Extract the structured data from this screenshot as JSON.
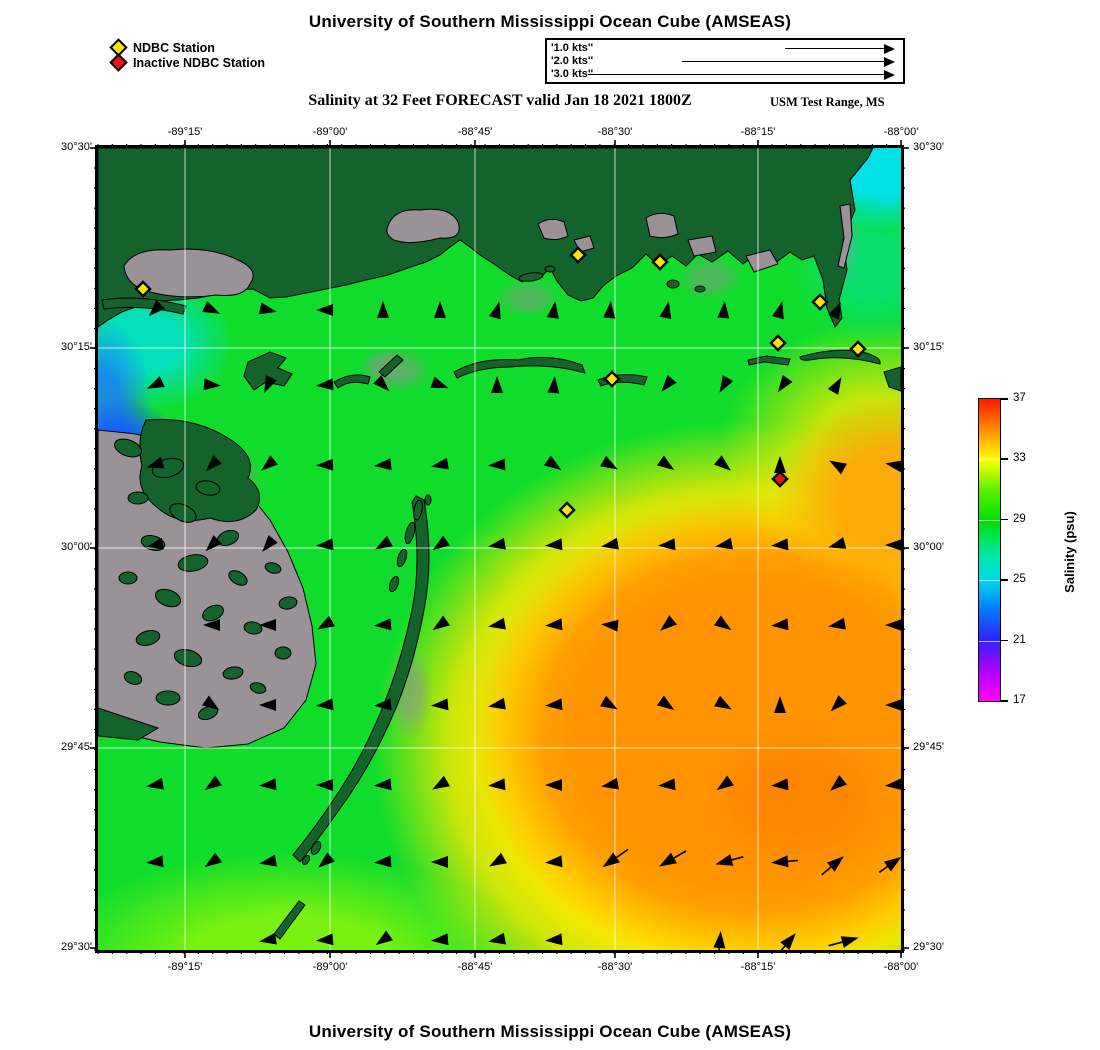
{
  "title_top": "University of Southern Mississippi Ocean Cube (AMSEAS)",
  "title_bottom": "University of Southern Mississippi Ocean Cube (AMSEAS)",
  "subtitle": "Salinity at 32 Feet FORECAST valid Jan 18 2021 1800Z",
  "region_label": "USM Test Range, MS",
  "legend": {
    "active_label": "NDBC Station",
    "inactive_label": "Inactive NDBC Station"
  },
  "scale_box": {
    "rows": [
      {
        "label": "'1.0 kts''",
        "length": 100
      },
      {
        "label": "'2.0 kts''",
        "length": 203
      },
      {
        "label": "'3.0 kts''",
        "length": 297
      }
    ]
  },
  "axes": {
    "x_ticks": [
      {
        "label": "-89°15'",
        "px": 87
      },
      {
        "label": "-89°00'",
        "px": 232
      },
      {
        "label": "-88°45'",
        "px": 377
      },
      {
        "label": "-88°30'",
        "px": 517
      },
      {
        "label": "-88°15'",
        "px": 660
      },
      {
        "label": "-88°00'",
        "px": 803
      }
    ],
    "y_ticks": [
      {
        "label": "30°30'",
        "px": 0
      },
      {
        "label": "30°15'",
        "px": 200
      },
      {
        "label": "30°00'",
        "px": 400
      },
      {
        "label": "29°45'",
        "px": 600
      },
      {
        "label": "29°30'",
        "px": 800
      }
    ]
  },
  "colorbar": {
    "title": "Salinity (psu)",
    "tick_values": [
      37,
      33,
      29,
      25,
      21,
      17
    ],
    "min": 17,
    "max": 37,
    "stops": [
      {
        "v": 17,
        "c": "#FF00FF"
      },
      {
        "v": 19,
        "c": "#B000FF"
      },
      {
        "v": 21,
        "c": "#3020FF"
      },
      {
        "v": 23,
        "c": "#0778FF"
      },
      {
        "v": 25,
        "c": "#00D8E8"
      },
      {
        "v": 26.5,
        "c": "#00E8B0"
      },
      {
        "v": 29,
        "c": "#00E000"
      },
      {
        "v": 31,
        "c": "#60F000"
      },
      {
        "v": 33,
        "c": "#FFFF00"
      },
      {
        "v": 34.5,
        "c": "#FFA800"
      },
      {
        "v": 36,
        "c": "#FF5000"
      },
      {
        "v": 37,
        "c": "#FF1800"
      }
    ]
  },
  "colors": {
    "land": "#14622C",
    "marsh_gray": "#9B9298",
    "station_active": "#FFE400",
    "station_inactive": "#EE1111",
    "arrow": "#000000",
    "gridline": "rgba(255,255,255,0.75)",
    "frame": "#000000"
  },
  "chart_data": {
    "type": "heatmap",
    "title": "Salinity at 32 Feet FORECAST valid Jan 18 2021 1800Z",
    "variable": "Salinity (psu)",
    "value_range": [
      17,
      37
    ],
    "colorbar_ticks": [
      17,
      21,
      25,
      29,
      33,
      37
    ],
    "lon_range": [
      "-89°24'",
      "-88°00'"
    ],
    "lat_range": [
      "29°30'",
      "30°30'"
    ],
    "grid_on": true,
    "notes": "Salinity field: ~20-25 psu near western marshes and Mobile Bay, ~28-30 psu mid Mississippi Sound, 32-35 psu offshore to the southeast; current vectors mostly westward offshore, northward near the eastern coast, 1-3 kt reference arrows in legend box"
  },
  "stations": {
    "active": [
      [
        45,
        141
      ],
      [
        480,
        107
      ],
      [
        562,
        114
      ],
      [
        722,
        154
      ],
      [
        680,
        195
      ],
      [
        760,
        201
      ],
      [
        514,
        231
      ],
      [
        469,
        362
      ]
    ],
    "inactive": [
      [
        682,
        331
      ]
    ]
  },
  "gridlines": {
    "x": [
      87,
      232,
      377,
      517,
      660
    ],
    "y": [
      200,
      400,
      600
    ]
  },
  "arrows": [
    [
      57,
      162,
      225,
      0
    ],
    [
      114,
      162,
      -25,
      0
    ],
    [
      170,
      162,
      -12,
      0
    ],
    [
      227,
      162,
      180,
      0
    ],
    [
      285,
      162,
      90,
      0
    ],
    [
      342,
      162,
      90,
      0
    ],
    [
      399,
      162,
      75,
      0
    ],
    [
      456,
      162,
      82,
      0
    ],
    [
      512,
      162,
      85,
      0
    ],
    [
      569,
      162,
      78,
      0
    ],
    [
      626,
      162,
      85,
      0
    ],
    [
      682,
      162,
      75,
      0
    ],
    [
      739,
      162,
      65,
      0
    ],
    [
      57,
      237,
      205,
      0
    ],
    [
      114,
      237,
      -5,
      0
    ],
    [
      170,
      237,
      245,
      0
    ],
    [
      227,
      237,
      185,
      0
    ],
    [
      285,
      237,
      -45,
      0
    ],
    [
      342,
      237,
      -20,
      0
    ],
    [
      399,
      237,
      90,
      0
    ],
    [
      456,
      237,
      85,
      0
    ],
    [
      569,
      237,
      230,
      0
    ],
    [
      626,
      237,
      240,
      0
    ],
    [
      685,
      237,
      235,
      0
    ],
    [
      739,
      237,
      60,
      0
    ],
    [
      57,
      317,
      198,
      0
    ],
    [
      114,
      317,
      225,
      0
    ],
    [
      170,
      317,
      220,
      0
    ],
    [
      227,
      317,
      182,
      0
    ],
    [
      285,
      317,
      186,
      0
    ],
    [
      342,
      317,
      190,
      0
    ],
    [
      399,
      317,
      184,
      0
    ],
    [
      456,
      317,
      -35,
      0
    ],
    [
      512,
      317,
      -30,
      0
    ],
    [
      569,
      317,
      -35,
      0
    ],
    [
      626,
      317,
      -40,
      0
    ],
    [
      682,
      317,
      90,
      10
    ],
    [
      739,
      317,
      150,
      0
    ],
    [
      796,
      317,
      170,
      0
    ],
    [
      57,
      397,
      190,
      0
    ],
    [
      114,
      397,
      225,
      0
    ],
    [
      170,
      397,
      230,
      0
    ],
    [
      227,
      397,
      185,
      0
    ],
    [
      285,
      397,
      210,
      0
    ],
    [
      342,
      397,
      215,
      0
    ],
    [
      399,
      397,
      190,
      0
    ],
    [
      456,
      397,
      185,
      0
    ],
    [
      512,
      397,
      190,
      0
    ],
    [
      569,
      397,
      185,
      0
    ],
    [
      626,
      397,
      190,
      0
    ],
    [
      682,
      397,
      185,
      0
    ],
    [
      739,
      397,
      195,
      0
    ],
    [
      796,
      397,
      180,
      0
    ],
    [
      114,
      477,
      180,
      0
    ],
    [
      170,
      477,
      180,
      0
    ],
    [
      227,
      477,
      210,
      0
    ],
    [
      285,
      477,
      185,
      0
    ],
    [
      342,
      477,
      215,
      0
    ],
    [
      399,
      477,
      190,
      0
    ],
    [
      456,
      477,
      185,
      0
    ],
    [
      512,
      477,
      175,
      0
    ],
    [
      569,
      477,
      220,
      0
    ],
    [
      626,
      477,
      -35,
      0
    ],
    [
      682,
      477,
      185,
      0
    ],
    [
      739,
      477,
      190,
      0
    ],
    [
      796,
      477,
      180,
      0
    ],
    [
      114,
      557,
      -35,
      0
    ],
    [
      170,
      557,
      180,
      0
    ],
    [
      227,
      557,
      185,
      0
    ],
    [
      285,
      557,
      185,
      0
    ],
    [
      342,
      557,
      185,
      0
    ],
    [
      399,
      557,
      190,
      0
    ],
    [
      456,
      557,
      185,
      0
    ],
    [
      512,
      557,
      -30,
      0
    ],
    [
      569,
      557,
      -35,
      0
    ],
    [
      626,
      557,
      -30,
      0
    ],
    [
      682,
      557,
      90,
      0
    ],
    [
      739,
      557,
      225,
      0
    ],
    [
      796,
      557,
      180,
      0
    ],
    [
      57,
      637,
      190,
      0
    ],
    [
      114,
      637,
      215,
      0
    ],
    [
      170,
      637,
      185,
      0
    ],
    [
      227,
      637,
      180,
      0
    ],
    [
      285,
      637,
      185,
      0
    ],
    [
      342,
      637,
      210,
      0
    ],
    [
      399,
      637,
      185,
      0
    ],
    [
      456,
      637,
      180,
      0
    ],
    [
      512,
      637,
      190,
      0
    ],
    [
      569,
      637,
      185,
      0
    ],
    [
      626,
      637,
      215,
      0
    ],
    [
      682,
      637,
      185,
      0
    ],
    [
      739,
      637,
      220,
      0
    ],
    [
      796,
      637,
      185,
      0
    ],
    [
      57,
      714,
      185,
      0
    ],
    [
      114,
      714,
      215,
      0
    ],
    [
      170,
      714,
      190,
      0
    ],
    [
      227,
      714,
      220,
      0
    ],
    [
      285,
      714,
      185,
      0
    ],
    [
      342,
      714,
      180,
      0
    ],
    [
      399,
      714,
      210,
      0
    ],
    [
      456,
      714,
      185,
      0
    ],
    [
      512,
      714,
      215,
      14
    ],
    [
      569,
      714,
      210,
      14
    ],
    [
      626,
      714,
      195,
      12
    ],
    [
      682,
      714,
      185,
      10
    ],
    [
      739,
      714,
      40,
      12
    ],
    [
      796,
      714,
      35,
      10
    ],
    [
      170,
      792,
      190,
      0
    ],
    [
      227,
      792,
      185,
      0
    ],
    [
      285,
      792,
      215,
      0
    ],
    [
      342,
      792,
      185,
      0
    ],
    [
      399,
      792,
      190,
      0
    ],
    [
      456,
      792,
      185,
      0
    ],
    [
      622,
      792,
      85,
      12
    ],
    [
      692,
      792,
      50,
      14
    ],
    [
      752,
      792,
      15,
      14
    ]
  ]
}
